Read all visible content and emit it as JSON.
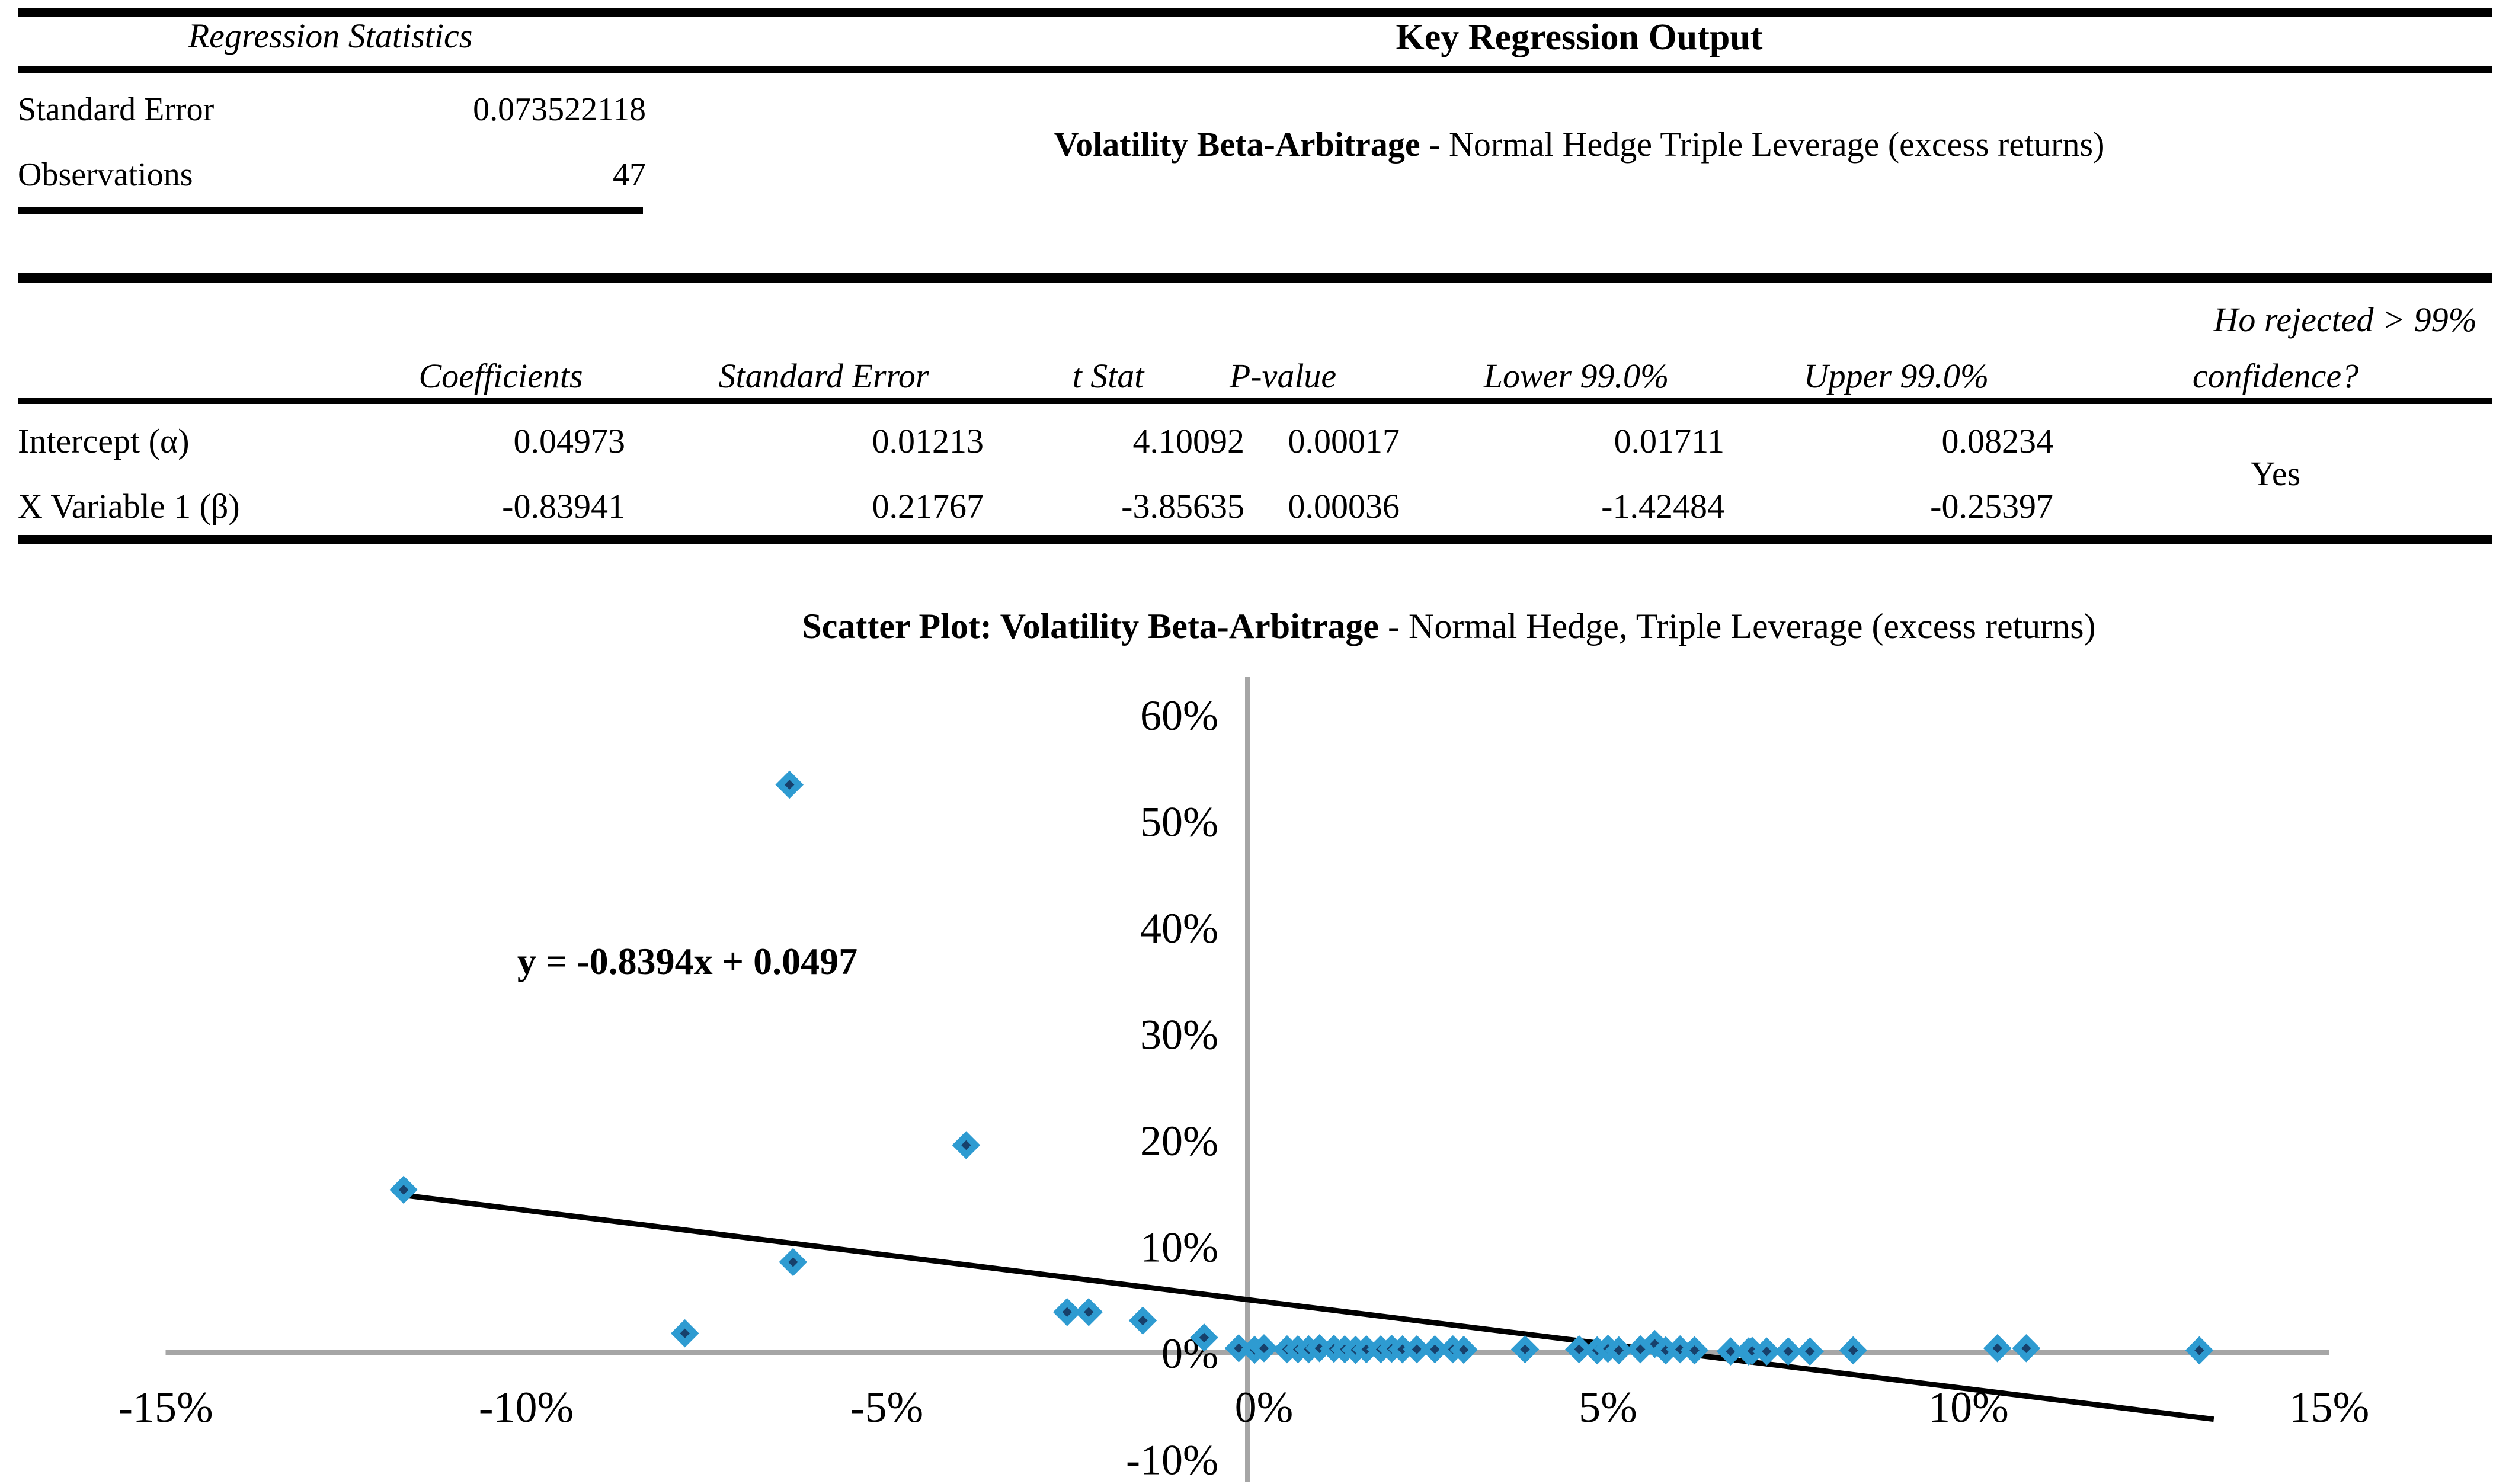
{
  "regression_statistics": {
    "title": "Regression Statistics",
    "rows": [
      {
        "label": "Standard Error",
        "value": "0.073522118"
      },
      {
        "label": "Observations",
        "value": "47"
      }
    ]
  },
  "key_output": {
    "title": "Key Regression Output",
    "subtitle_bold": "Volatility Beta-Arbitrage",
    "subtitle_rest": " - Normal Hedge Triple Leverage (excess returns)"
  },
  "coefficients_table": {
    "note_line1": "Ho rejected > 99%",
    "note_line2": "confidence?",
    "headers": [
      "Coefficients",
      "Standard Error",
      "t Stat",
      "P-value",
      "Lower 99.0%",
      "Upper 99.0%"
    ],
    "rows": [
      {
        "label": "Intercept (α)",
        "values": [
          "0.04973",
          "0.01213",
          "4.10092",
          "0.00017",
          "0.01711",
          "0.08234"
        ]
      },
      {
        "label": "X Variable 1 (β)",
        "values": [
          "-0.83941",
          "0.21767",
          "-3.85635",
          "0.00036",
          "-1.42484",
          "-0.25397"
        ]
      }
    ],
    "decision": "Yes"
  },
  "chart_data": {
    "type": "scatter",
    "title_bold": "Scatter Plot: Volatility Beta-Arbitrage",
    "title_rest": " - Normal Hedge, Triple Leverage (excess returns)",
    "equation_label": "y = -0.8394x + 0.0497",
    "x_axis": {
      "min": -15,
      "max": 15,
      "step": 5,
      "unit": "%"
    },
    "y_axis": {
      "min": -10,
      "max": 60,
      "step": 10,
      "unit": "%"
    },
    "legend": "none",
    "grid": false,
    "axis_color": "#A6A6A6",
    "marker": {
      "fill": "#17406B",
      "border": "#2E9BD1"
    },
    "trendline": {
      "slope": -0.8394,
      "intercept": 0.0497,
      "x_start_pct": -11.7,
      "x_end_pct": 13.4,
      "color": "#000000"
    },
    "points_pct": [
      [
        -11.7,
        15.3
      ],
      [
        -7.8,
        1.8
      ],
      [
        -6.35,
        53.4
      ],
      [
        -6.3,
        8.5
      ],
      [
        -3.9,
        19.5
      ],
      [
        -2.5,
        3.8
      ],
      [
        -2.2,
        3.8
      ],
      [
        -1.45,
        3.0
      ],
      [
        -0.6,
        1.4
      ],
      [
        -0.12,
        0.4
      ],
      [
        0.1,
        0.25
      ],
      [
        0.23,
        0.4
      ],
      [
        0.55,
        0.3
      ],
      [
        0.7,
        0.3
      ],
      [
        0.85,
        0.3
      ],
      [
        1.0,
        0.4
      ],
      [
        1.2,
        0.35
      ],
      [
        1.35,
        0.3
      ],
      [
        1.5,
        0.25
      ],
      [
        1.65,
        0.3
      ],
      [
        1.85,
        0.3
      ],
      [
        2.0,
        0.35
      ],
      [
        2.15,
        0.3
      ],
      [
        2.35,
        0.3
      ],
      [
        2.6,
        0.3
      ],
      [
        2.85,
        0.3
      ],
      [
        3.0,
        0.25
      ],
      [
        3.85,
        0.3
      ],
      [
        4.6,
        0.3
      ],
      [
        4.85,
        0.2
      ],
      [
        5.0,
        0.35
      ],
      [
        5.15,
        0.2
      ],
      [
        5.45,
        0.3
      ],
      [
        5.65,
        0.8
      ],
      [
        5.8,
        0.2
      ],
      [
        6.0,
        0.3
      ],
      [
        6.2,
        0.2
      ],
      [
        6.7,
        0.1
      ],
      [
        6.95,
        0.1
      ],
      [
        7.0,
        0.15
      ],
      [
        7.2,
        0.1
      ],
      [
        7.5,
        0.1
      ],
      [
        7.8,
        0.1
      ],
      [
        8.4,
        0.2
      ],
      [
        10.4,
        0.4
      ],
      [
        10.8,
        0.4
      ],
      [
        13.2,
        0.2
      ]
    ]
  }
}
